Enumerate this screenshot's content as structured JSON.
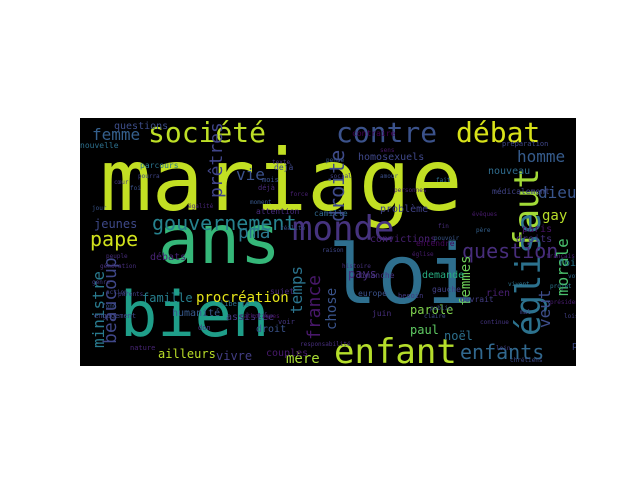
{
  "figure": {
    "background": "#000000",
    "colormap": "viridis",
    "words": [
      {
        "text": "mariage",
        "color": "#c2df23"
      },
      {
        "text": "loi",
        "color": "#2e6f8e"
      },
      {
        "text": "ans",
        "color": "#35b779"
      },
      {
        "text": "bien",
        "color": "#1f9e89"
      },
      {
        "text": "société",
        "color": "#bddf26"
      },
      {
        "text": "contre",
        "color": "#3b528b"
      },
      {
        "text": "débat",
        "color": "#d8e219"
      },
      {
        "text": "monde",
        "color": "#46337f"
      },
      {
        "text": "enfant",
        "color": "#b5de2b"
      },
      {
        "text": "faut",
        "color": "#a2da37"
      },
      {
        "text": "église",
        "color": "#2c728e"
      },
      {
        "text": "question",
        "color": "#472d7b"
      },
      {
        "text": "gouvernement",
        "color": "#26828e"
      },
      {
        "text": "enfants",
        "color": "#31688e"
      },
      {
        "text": "droite",
        "color": "#3e4a89"
      },
      {
        "text": "beaucoup",
        "color": "#3f4788"
      },
      {
        "text": "pape",
        "color": "#d0e11c"
      },
      {
        "text": "femme",
        "color": "#35608d"
      },
      {
        "text": "prêtres",
        "color": "#404588"
      },
      {
        "text": "homme",
        "color": "#365c8d"
      },
      {
        "text": "dieu",
        "color": "#39558c"
      },
      {
        "text": "veut",
        "color": "#3d4d8a"
      },
      {
        "text": "morale",
        "color": "#4ac16d"
      },
      {
        "text": "pma",
        "color": "#2a788e"
      },
      {
        "text": "vie",
        "color": "#3b518b"
      },
      {
        "text": "ministre",
        "color": "#297a8e"
      },
      {
        "text": "france",
        "color": "#48186a"
      },
      {
        "text": "temps",
        "color": "#2b748e"
      },
      {
        "text": "femmes",
        "color": "#6ece58"
      },
      {
        "text": "gay",
        "color": "#b8de29"
      },
      {
        "text": "mère",
        "color": "#a8db34"
      },
      {
        "text": "procréation",
        "color": "#e5e419"
      },
      {
        "text": "chose",
        "color": "#3a548c"
      },
      {
        "text": "famille",
        "color": "#277f8e"
      },
      {
        "text": "vivre",
        "color": "#433e85"
      },
      {
        "text": "ailleurs",
        "color": "#bade28"
      },
      {
        "text": "couples",
        "color": "#481a6c"
      },
      {
        "text": "parole",
        "color": "#7fd34e"
      },
      {
        "text": "paul",
        "color": "#5ec962"
      },
      {
        "text": "noël",
        "color": "#2d708e"
      },
      {
        "text": "jeunes",
        "color": "#3e4989"
      },
      {
        "text": "paris",
        "color": "#481467"
      },
      {
        "text": "débats",
        "color": "#482475"
      },
      {
        "text": "fois",
        "color": "#2a778e"
      },
      {
        "text": "homosexuels",
        "color": "#3f4889"
      },
      {
        "text": "nouveau",
        "color": "#2f6c8e"
      },
      {
        "text": "droits",
        "color": "#46307e"
      },
      {
        "text": "questions",
        "color": "#3d4e8a"
      },
      {
        "text": "pays",
        "color": "#472c7a"
      },
      {
        "text": "demande",
        "color": "#26ad81"
      },
      {
        "text": "rien",
        "color": "#481f70"
      },
      {
        "text": "droit",
        "color": "#3a538b"
      },
      {
        "text": "humanité",
        "color": "#37598c"
      },
      {
        "text": "assistée",
        "color": "#453882"
      },
      {
        "text": "parcours",
        "color": "#2b758e"
      },
      {
        "text": "contraire",
        "color": "#440154"
      },
      {
        "text": "dimanche",
        "color": "#46337f"
      },
      {
        "text": "gauche",
        "color": "#424086"
      },
      {
        "text": "europe",
        "color": "#3b528b"
      },
      {
        "text": "convictions",
        "color": "#482173"
      },
      {
        "text": "entendre",
        "color": "#46085c"
      },
      {
        "text": "camille",
        "color": "#31688e"
      },
      {
        "text": "attention",
        "color": "#472a7a"
      },
      {
        "text": "dejà",
        "color": "#3f4889"
      },
      {
        "text": "problème",
        "color": "#414287"
      },
      {
        "text": "médicalement",
        "color": "#414487"
      },
      {
        "text": "préparation",
        "color": "#3f4788"
      },
      {
        "text": "liberté",
        "color": "#2c718e"
      },
      {
        "text": "mois",
        "color": "#3b518b"
      },
      {
        "text": "sujet",
        "color": "#482878"
      },
      {
        "text": "besoin",
        "color": "#443983"
      },
      {
        "text": "point",
        "color": "#3e4c8a"
      },
      {
        "text": "devrait",
        "color": "#433d84"
      },
      {
        "text": "nature",
        "color": "#482576"
      },
      {
        "text": "engagement",
        "color": "#404688"
      },
      {
        "text": "don",
        "color": "#46327e"
      },
      {
        "text": "juin",
        "color": "#472f7d"
      },
      {
        "text": "cas",
        "color": "#3e4989"
      },
      {
        "text": "déjà",
        "color": "#482979"
      },
      {
        "text": "voir",
        "color": "#453781"
      },
      {
        "text": "public",
        "color": "#3c4f8a"
      },
      {
        "text": "égalité",
        "color": "#482677"
      },
      {
        "text": "église",
        "color": "#481c6e"
      },
      {
        "text": "moment",
        "color": "#38588c"
      },
      {
        "text": "pourra",
        "color": "#404588"
      },
      {
        "text": "parents",
        "color": "#433e85"
      },
      {
        "text": "fond",
        "color": "#3b528b"
      },
      {
        "text": "génération",
        "color": "#472f7d"
      },
      {
        "text": "catholiques",
        "color": "#471164"
      },
      {
        "text": "fait",
        "color": "#2e6e8e"
      },
      {
        "text": "amour",
        "color": "#3c4f8a"
      },
      {
        "text": "président",
        "color": "#481d6f"
      },
      {
        "text": "responsabilité",
        "color": "#472e7c"
      },
      {
        "text": "continue",
        "color": "#453581"
      },
      {
        "text": "action",
        "color": "#404588"
      },
      {
        "text": "nouvelle",
        "color": "#2d708e"
      },
      {
        "text": "force",
        "color": "#482071"
      },
      {
        "text": "claire",
        "color": "#3e4c8a"
      },
      {
        "text": "fin",
        "color": "#472c7a"
      },
      {
        "text": "jour",
        "color": "#3a548c"
      },
      {
        "text": "sens",
        "color": "#481769"
      },
      {
        "text": "loin",
        "color": "#433d84"
      },
      {
        "text": "mal",
        "color": "#404588"
      },
      {
        "text": "vivent",
        "color": "#2c738e"
      },
      {
        "text": "réalité",
        "color": "#3d4d8a"
      },
      {
        "text": "peuple",
        "color": "#472d7b"
      },
      {
        "text": "histoire",
        "color": "#46307e"
      },
      {
        "text": "pouvoir",
        "color": "#39568c"
      },
      {
        "text": "père",
        "color": "#34618d"
      },
      {
        "text": "genre",
        "color": "#443a83"
      },
      {
        "text": "personnes",
        "color": "#482374"
      },
      {
        "text": "raison",
        "color": "#3f4788"
      },
      {
        "text": "vote",
        "color": "#2f6b8e"
      },
      {
        "text": "social",
        "color": "#423f85"
      },
      {
        "text": "texte",
        "color": "#46327e"
      },
      {
        "text": "évêques",
        "color": "#481b6d"
      },
      {
        "text": "foi",
        "color": "#3b528b"
      },
      {
        "text": "cœur",
        "color": "#45377f"
      },
      {
        "text": "chrétiens",
        "color": "#3e4a89"
      },
      {
        "text": "projet",
        "color": "#2a778e"
      },
      {
        "text": "lois",
        "color": "#423f85"
      },
      {
        "text": "français",
        "color": "#482475"
      },
      {
        "text": "pense",
        "color": "#38588c"
      }
    ]
  }
}
